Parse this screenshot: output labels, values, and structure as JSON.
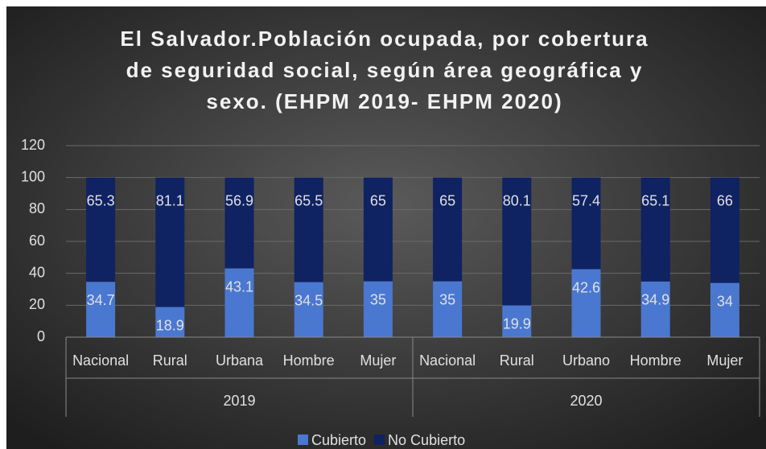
{
  "chart_data": {
    "type": "stacked_bar",
    "title": [
      "El Salvador.Población ocupada, por cobertura",
      "de seguridad social, según área geográfica y",
      "sexo. (EHPM 2019- EHPM 2020)"
    ],
    "categories": [
      "Nacional",
      "Rural",
      "Urbana",
      "Hombre",
      "Mujer",
      "Nacional",
      "Rural",
      "Urbano",
      "Hombre",
      "Mujer"
    ],
    "groups": [
      "2019",
      "2020"
    ],
    "series": [
      {
        "name": "Cubierto",
        "color": "#4a78d0",
        "values": [
          34.7,
          18.9,
          43.1,
          34.5,
          35,
          35,
          19.9,
          42.6,
          34.9,
          34
        ]
      },
      {
        "name": "No Cubierto",
        "color": "#0f2262",
        "values": [
          65.3,
          81.1,
          56.9,
          65.5,
          65,
          65,
          80.1,
          57.4,
          65.1,
          66
        ]
      }
    ],
    "ylim": [
      0,
      120
    ],
    "yticks": [
      0,
      20,
      40,
      60,
      80,
      100,
      120
    ],
    "grid": true,
    "legend": "bottom"
  }
}
